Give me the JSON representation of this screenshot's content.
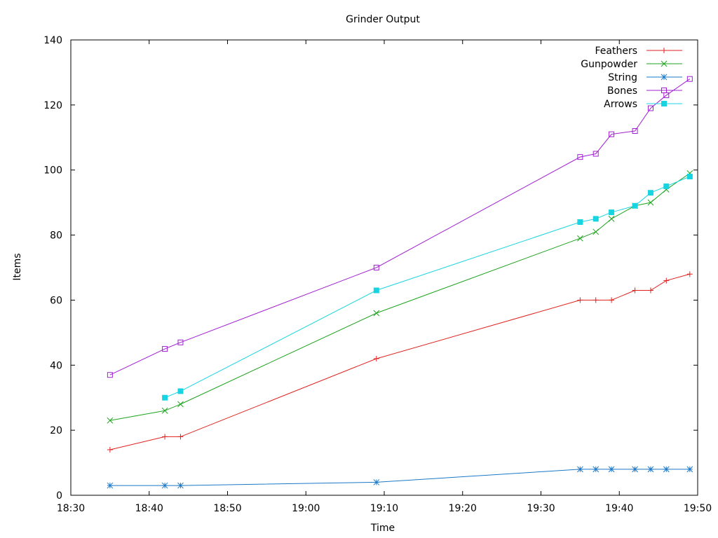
{
  "chart_data": {
    "type": "line",
    "title": "Grinder Output",
    "xlabel": "Time",
    "ylabel": "Items",
    "xlim": [
      "18:30",
      "19:50"
    ],
    "ylim": [
      0,
      140
    ],
    "x_ticks": [
      "18:30",
      "18:40",
      "18:50",
      "19:00",
      "19:10",
      "19:20",
      "19:30",
      "19:40",
      "19:50"
    ],
    "y_ticks": [
      0,
      20,
      40,
      60,
      80,
      100,
      120,
      140
    ],
    "grid": false,
    "legend_position": "top-right",
    "series": [
      {
        "name": "Feathers",
        "color": "#e0201c",
        "marker": "plus",
        "x": [
          "18:35",
          "18:42",
          "18:44",
          "19:09",
          "19:35",
          "19:37",
          "19:39",
          "19:42",
          "19:44",
          "19:46",
          "19:49"
        ],
        "values": [
          14,
          18,
          18,
          42,
          60,
          60,
          60,
          63,
          63,
          66,
          68
        ]
      },
      {
        "name": "Gunpowder",
        "color": "#1ea31e",
        "marker": "cross",
        "x": [
          "18:35",
          "18:42",
          "18:44",
          "19:09",
          "19:35",
          "19:37",
          "19:39",
          "19:42",
          "19:44",
          "19:46",
          "19:49"
        ],
        "values": [
          23,
          26,
          28,
          56,
          79,
          81,
          85,
          89,
          90,
          94,
          99
        ]
      },
      {
        "name": "String",
        "color": "#1a78c8",
        "marker": "asterisk",
        "x": [
          "18:35",
          "18:42",
          "18:44",
          "19:09",
          "19:35",
          "19:37",
          "19:39",
          "19:42",
          "19:44",
          "19:46",
          "19:49"
        ],
        "values": [
          3,
          3,
          3,
          4,
          8,
          8,
          8,
          8,
          8,
          8,
          8
        ]
      },
      {
        "name": "Bones",
        "color": "#a020d0",
        "marker": "open-square",
        "x": [
          "18:35",
          "18:42",
          "18:44",
          "19:09",
          "19:35",
          "19:37",
          "19:39",
          "19:42",
          "19:44",
          "19:46",
          "19:49"
        ],
        "values": [
          37,
          45,
          47,
          70,
          104,
          105,
          111,
          112,
          119,
          123,
          128
        ]
      },
      {
        "name": "Arrows",
        "color": "#18d4e0",
        "marker": "filled-square",
        "x": [
          "18:42",
          "18:44",
          "19:09",
          "19:35",
          "19:37",
          "19:39",
          "19:42",
          "19:44",
          "19:46",
          "19:49"
        ],
        "values": [
          30,
          32,
          63,
          84,
          85,
          87,
          89,
          93,
          95,
          98
        ]
      }
    ]
  }
}
